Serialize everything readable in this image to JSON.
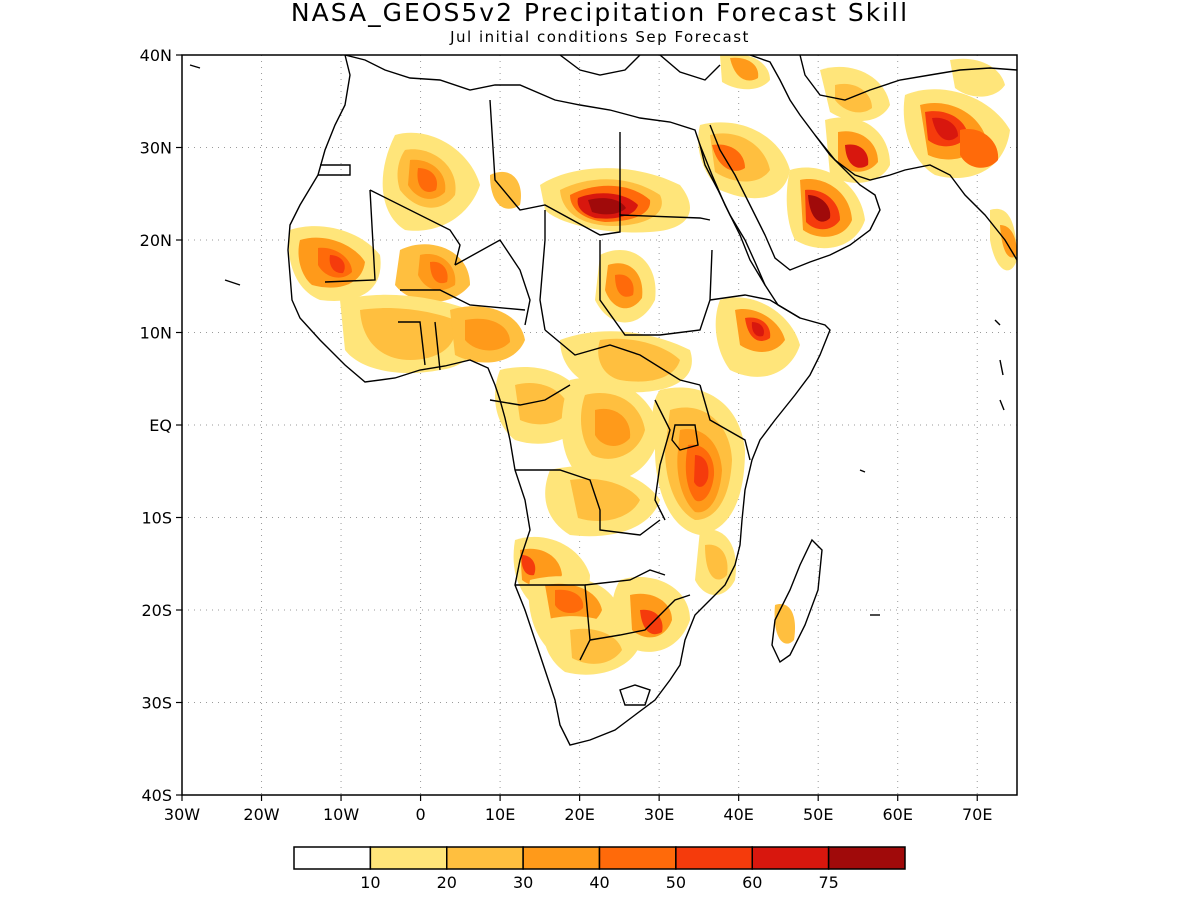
{
  "title": "NASA_GEOS5v2 Precipitation Forecast Skill",
  "subtitle": "Jul initial conditions   Sep Forecast",
  "lat_labels": [
    "40N",
    "30N",
    "20N",
    "10N",
    "EQ",
    "10S",
    "20S",
    "30S",
    "40S"
  ],
  "lon_labels": [
    "30W",
    "20W",
    "10W",
    "0",
    "10E",
    "20E",
    "30E",
    "40E",
    "50E",
    "60E",
    "70E"
  ],
  "legend": {
    "labels": [
      "10",
      "20",
      "30",
      "40",
      "50",
      "60",
      "75"
    ],
    "colors": [
      "#ffffff",
      "#ffe57a",
      "#ffbf3f",
      "#ff9a1a",
      "#ff6a0a",
      "#f53b0c",
      "#d8170e",
      "#a00a0a"
    ]
  },
  "map": {
    "land_outline": "coastlines and country borders of Africa, Arabian Peninsula and southern Asia",
    "region": "Africa"
  }
}
